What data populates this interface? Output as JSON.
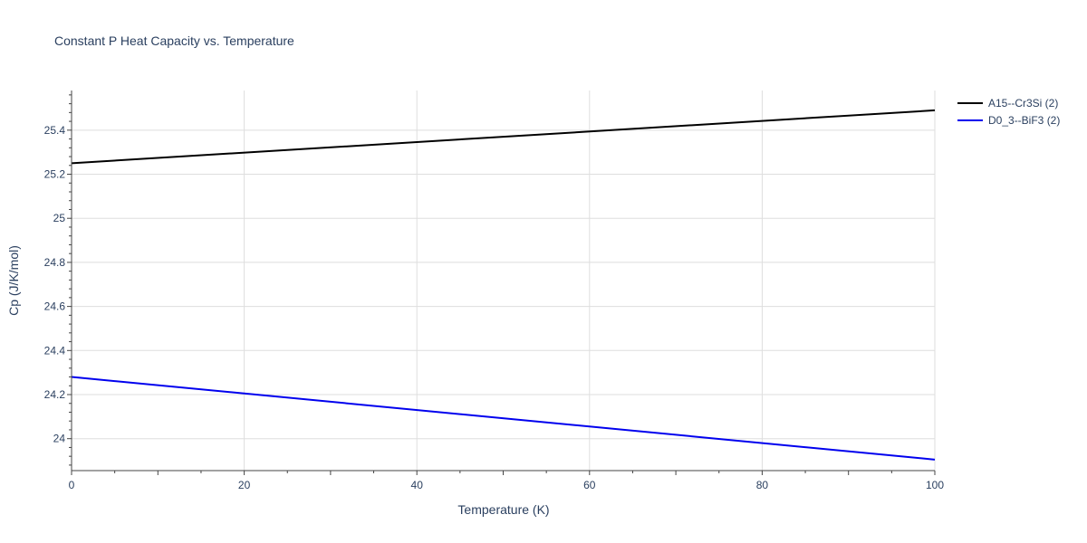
{
  "chart_data": {
    "type": "line",
    "title": "Constant P Heat Capacity vs. Temperature",
    "xlabel": "Temperature (K)",
    "ylabel": "Cp (J/K/mol)",
    "xlim": [
      0,
      100
    ],
    "ylim": [
      23.855,
      25.58
    ],
    "x_ticks": [
      0,
      20,
      40,
      60,
      80,
      100
    ],
    "x_tick_labels": [
      "0",
      "20",
      "40",
      "60",
      "80",
      "100"
    ],
    "y_ticks": [
      24.0,
      24.2,
      24.4,
      24.6,
      24.8,
      25.0,
      25.2,
      25.4
    ],
    "y_tick_labels": [
      "24",
      "24.2",
      "24.4",
      "24.6",
      "24.8",
      "25",
      "25.2",
      "25.4"
    ],
    "grid": true,
    "legend_position": "top-right outside",
    "series": [
      {
        "name": "A15--Cr3Si (2)",
        "color": "#000000",
        "x": [
          0,
          100
        ],
        "y": [
          25.25,
          25.49
        ]
      },
      {
        "name": "D0_3--BiF3 (2)",
        "color": "#0000ee",
        "x": [
          0,
          100
        ],
        "y": [
          24.28,
          23.905
        ]
      }
    ]
  }
}
